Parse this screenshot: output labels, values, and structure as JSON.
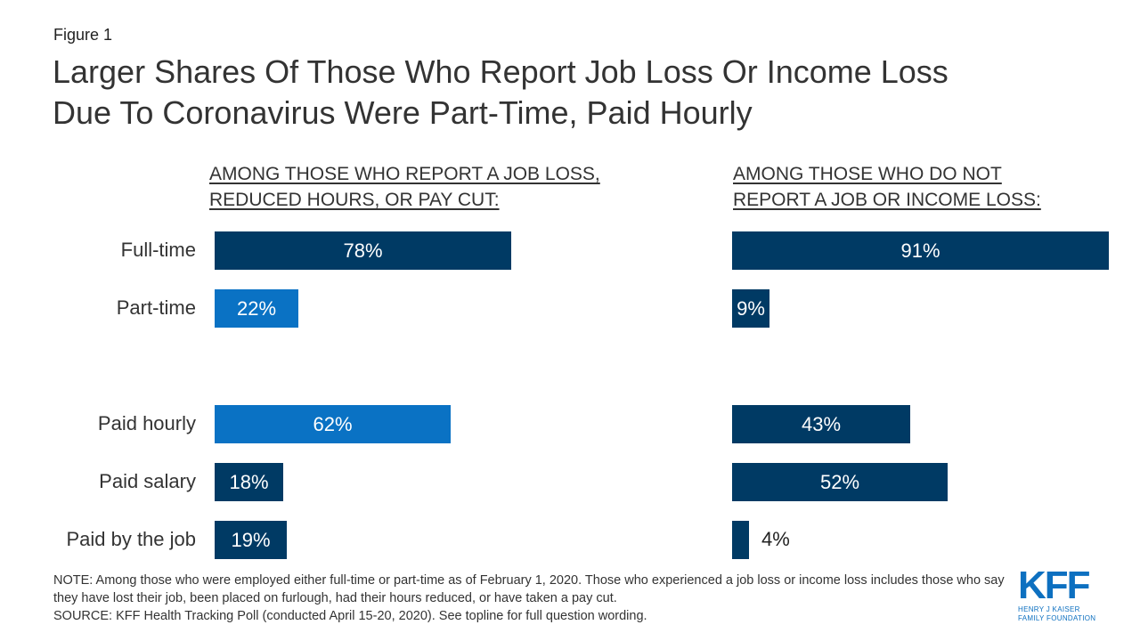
{
  "figure_label": "Figure 1",
  "title_line1": "Larger Shares Of Those Who Report Job Loss Or Income Loss",
  "title_line2": "Due To Coronavirus Were Part-Time, Paid Hourly",
  "colors": {
    "dark": "#003a64",
    "light": "#0a72c4"
  },
  "chart_data": [
    {
      "type": "bar",
      "panel_title_line1": "AMONG THOSE WHO REPORT A JOB LOSS,",
      "panel_title_line2": "REDUCED HOURS, OR PAY CUT:",
      "categories": [
        "Full-time",
        "Part-time",
        "Paid hourly",
        "Paid salary",
        "Paid by the job"
      ],
      "values": [
        78,
        22,
        62,
        18,
        19
      ],
      "value_labels": [
        "78%",
        "22%",
        "62%",
        "18%",
        "19%"
      ],
      "bar_colors": [
        "#003a64",
        "#0a72c4",
        "#0a72c4",
        "#003a64",
        "#003a64"
      ],
      "xlim": [
        0,
        100
      ]
    },
    {
      "type": "bar",
      "panel_title_line1": "AMONG THOSE WHO DO NOT",
      "panel_title_line2": "REPORT A JOB OR INCOME LOSS:",
      "categories": [
        "Full-time",
        "Part-time",
        "Paid hourly",
        "Paid salary",
        "Paid by the job"
      ],
      "values": [
        91,
        9,
        43,
        52,
        4
      ],
      "value_labels": [
        "91%",
        "9%",
        "43%",
        "52%",
        "4%"
      ],
      "bar_colors": [
        "#003a64",
        "#003a64",
        "#003a64",
        "#003a64",
        "#003a64"
      ],
      "xlim": [
        0,
        100
      ]
    }
  ],
  "note": "NOTE: Among those who were employed either full-time or part-time as of February 1, 2020. Those who experienced a job loss or income loss includes those who say they have lost their job, been placed on furlough, had their hours reduced, or have taken a pay cut.",
  "source": "SOURCE: KFF Health Tracking Poll (conducted April 15-20, 2020). See topline for full question wording.",
  "logo": {
    "mark": "KFF",
    "sub_line1": "HENRY J KAISER",
    "sub_line2": "FAMILY FOUNDATION"
  }
}
